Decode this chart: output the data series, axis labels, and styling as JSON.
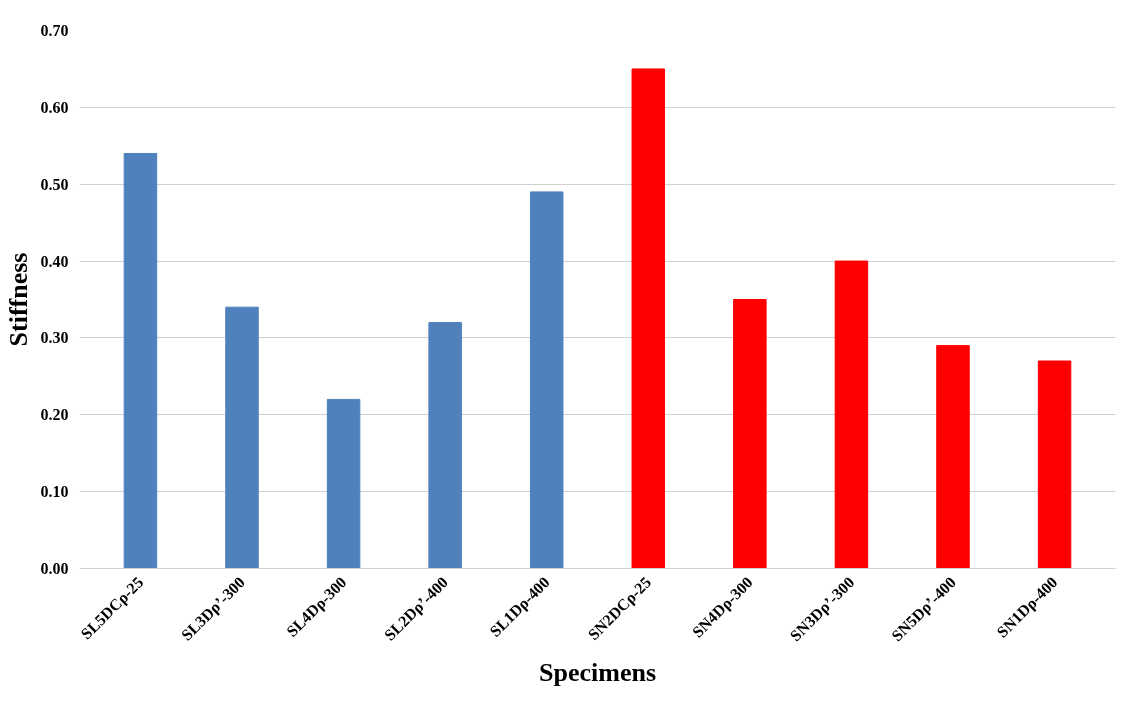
{
  "chart_data": {
    "type": "bar",
    "xlabel": "Specimens",
    "ylabel": "Stiffness",
    "categories": [
      "SL5DCρ-25",
      "SL3Dρ’-300",
      "SL4Dρ-300",
      "SL2Dρ’-400",
      "SL1Dρ-400",
      "SN2DCρ-25",
      "SN4Dρ-300",
      "SN3Dρ’-300",
      "SN5Dρ’-400",
      "SN1Dρ-400"
    ],
    "values": [
      0.54,
      0.34,
      0.22,
      0.32,
      0.49,
      0.65,
      0.35,
      0.4,
      0.29,
      0.27
    ],
    "colors": [
      "#4f81bd",
      "#4f81bd",
      "#4f81bd",
      "#4f81bd",
      "#4f81bd",
      "#ff0000",
      "#ff0000",
      "#ff0000",
      "#ff0000",
      "#ff0000"
    ],
    "ylim": [
      0,
      0.7
    ],
    "yticks": [
      {
        "value": 0,
        "label": "0.00"
      },
      {
        "value": 0.1,
        "label": "0.10"
      },
      {
        "value": 0.2,
        "label": "0.20"
      },
      {
        "value": 0.3,
        "label": "0.30"
      },
      {
        "value": 0.4,
        "label": "0.40"
      },
      {
        "value": 0.5,
        "label": "0.50"
      },
      {
        "value": 0.6,
        "label": "0.60"
      },
      {
        "value": 0.7,
        "label": "0.70"
      }
    ],
    "grid": "y"
  }
}
